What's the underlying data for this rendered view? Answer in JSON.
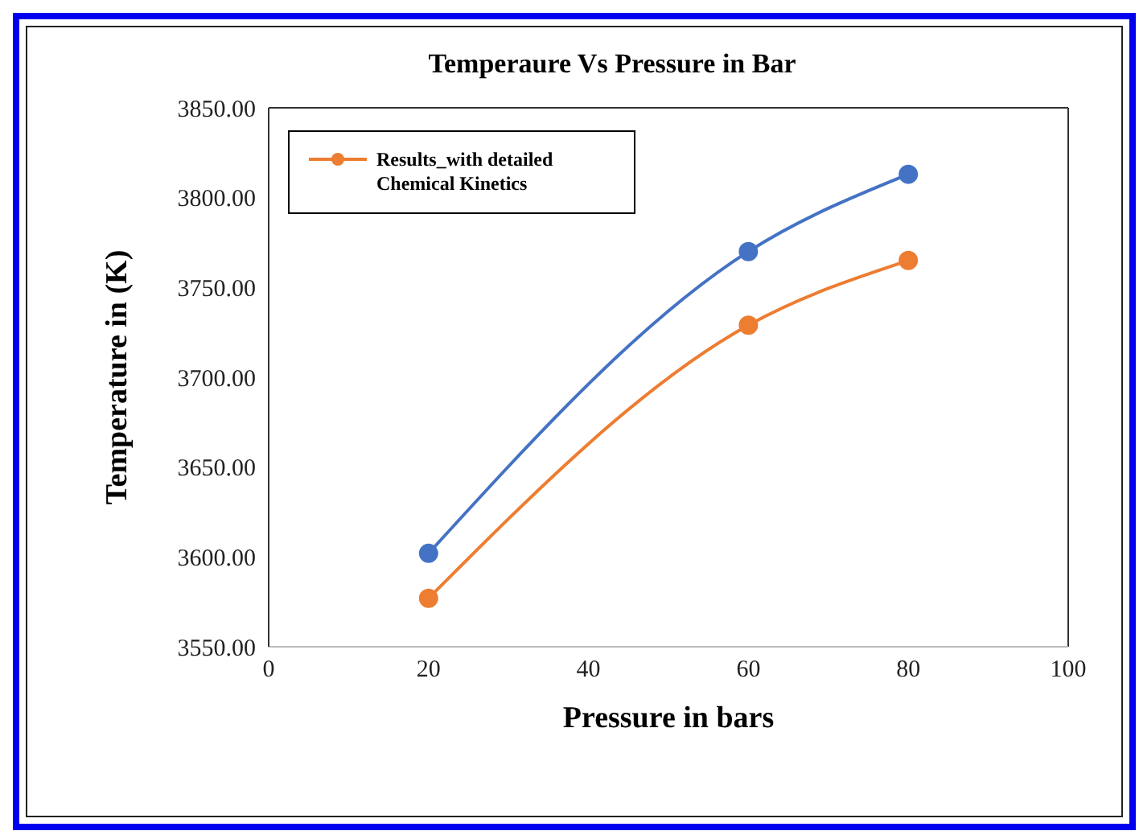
{
  "chart_data": {
    "type": "line",
    "title": "Temperaure Vs Pressure in Bar",
    "xlabel": "Pressure in bars",
    "ylabel": "Temperature in (K)",
    "x": [
      20,
      60,
      80
    ],
    "series": [
      {
        "color": "#4472c4",
        "values": [
          3602,
          3770,
          3813
        ]
      },
      {
        "name": "Results_with detailed Chemical Kinetics",
        "color": "#ed7d31",
        "values": [
          3577,
          3729,
          3765
        ]
      }
    ],
    "xlim": [
      0,
      100
    ],
    "xticks": [
      0,
      20,
      40,
      60,
      80,
      100
    ],
    "ylim": [
      3550,
      3850
    ],
    "yticks": [
      {
        "value": 3550,
        "label": "3550.00"
      },
      {
        "value": 3600,
        "label": "3600.00"
      },
      {
        "value": 3650,
        "label": "3650.00"
      },
      {
        "value": 3700,
        "label": "3700.00"
      },
      {
        "value": 3750,
        "label": "3750.00"
      },
      {
        "value": 3800,
        "label": "3800.00"
      },
      {
        "value": 3850,
        "label": "3850.00"
      }
    ],
    "grid": false,
    "legend": "top left",
    "marker": "circle",
    "line_style": "solid"
  }
}
